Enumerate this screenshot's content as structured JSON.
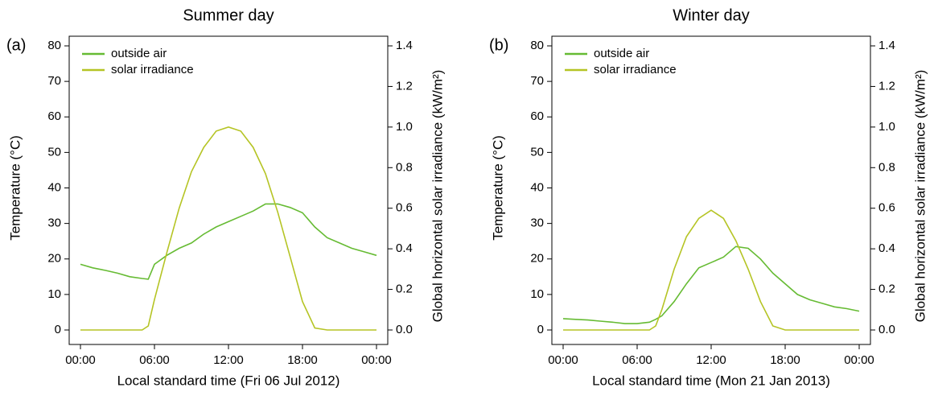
{
  "chart_data": [
    {
      "type": "line",
      "panel": "(a)",
      "title": "Summer day",
      "xlabel": "Local standard time (Fri 06 Jul 2012)",
      "ylabel": "Temperature (°C)",
      "y2label": "Global horizontal solar irradiance (kW/m²)",
      "x": [
        0,
        1,
        2,
        3,
        4,
        5,
        5.5,
        6,
        7,
        8,
        9,
        10,
        11,
        12,
        13,
        14,
        15,
        16,
        17,
        18,
        19,
        20,
        21,
        22,
        23,
        24
      ],
      "series": [
        {
          "name": "outside air",
          "color": "#66bb33",
          "values": [
            18.5,
            17.5,
            16.8,
            16,
            15,
            14.5,
            14.3,
            18.5,
            21,
            23,
            24.5,
            27,
            29,
            30.5,
            32,
            33.5,
            35.5,
            35.5,
            34.5,
            33,
            29,
            26,
            24.5,
            23,
            22,
            21
          ]
        },
        {
          "name": "solar irradiance",
          "color": "#b5c424",
          "axis": "y2",
          "values": [
            0,
            0,
            0,
            0,
            0,
            0,
            0.02,
            0.15,
            0.38,
            0.6,
            0.78,
            0.9,
            0.98,
            1.0,
            0.98,
            0.9,
            0.77,
            0.58,
            0.36,
            0.14,
            0.01,
            0,
            0,
            0,
            0,
            0
          ]
        }
      ],
      "xlim": [
        0,
        24
      ],
      "xticks": [
        {
          "value": 0,
          "label": "00:00"
        },
        {
          "value": 6,
          "label": "06:00"
        },
        {
          "value": 12,
          "label": "12:00"
        },
        {
          "value": 18,
          "label": "18:00"
        },
        {
          "value": 24,
          "label": "00:00"
        }
      ],
      "ylim": [
        0,
        80
      ],
      "yticks": [
        0,
        10,
        20,
        30,
        40,
        50,
        60,
        70,
        80
      ],
      "y2lim": [
        0,
        1.4
      ],
      "y2ticks": [
        {
          "value": 0,
          "label": "0.0"
        },
        0.2,
        0.4,
        0.6,
        0.8,
        {
          "value": 1,
          "label": "1.0"
        },
        1.2,
        1.4
      ],
      "legend": "upper left"
    },
    {
      "type": "line",
      "panel": "(b)",
      "title": "Winter day",
      "xlabel": "Local standard time (Mon 21 Jan 2013)",
      "ylabel": "Temperature (°C)",
      "y2label": "Global horizontal solar irradiance (kW/m²)",
      "x": [
        0,
        1,
        2,
        3,
        4,
        5,
        6,
        7,
        7.5,
        8,
        9,
        10,
        11,
        12,
        13,
        14,
        15,
        16,
        17,
        18,
        19,
        20,
        21,
        22,
        23,
        24
      ],
      "series": [
        {
          "name": "outside air",
          "color": "#66bb33",
          "values": [
            3.2,
            3,
            2.8,
            2.5,
            2.2,
            1.8,
            1.8,
            2.2,
            3,
            4,
            8,
            13,
            17.5,
            19,
            20.5,
            23.5,
            23,
            20,
            16,
            13,
            10,
            8.5,
            7.5,
            6.5,
            6,
            5.3
          ]
        },
        {
          "name": "solar irradiance",
          "color": "#b5c424",
          "axis": "y2",
          "values": [
            0,
            0,
            0,
            0,
            0,
            0,
            0,
            0,
            0.02,
            0.1,
            0.3,
            0.46,
            0.55,
            0.59,
            0.55,
            0.44,
            0.3,
            0.14,
            0.02,
            0,
            0,
            0,
            0,
            0,
            0,
            0
          ]
        }
      ],
      "xlim": [
        0,
        24
      ],
      "xticks": [
        {
          "value": 0,
          "label": "00:00"
        },
        {
          "value": 6,
          "label": "06:00"
        },
        {
          "value": 12,
          "label": "12:00"
        },
        {
          "value": 18,
          "label": "18:00"
        },
        {
          "value": 24,
          "label": "00:00"
        }
      ],
      "ylim": [
        0,
        80
      ],
      "yticks": [
        0,
        10,
        20,
        30,
        40,
        50,
        60,
        70,
        80
      ],
      "y2lim": [
        0,
        1.4
      ],
      "y2ticks": [
        {
          "value": 0,
          "label": "0.0"
        },
        0.2,
        0.4,
        0.6,
        0.8,
        {
          "value": 1,
          "label": "1.0"
        },
        1.2,
        1.4
      ],
      "legend": "upper left"
    }
  ]
}
